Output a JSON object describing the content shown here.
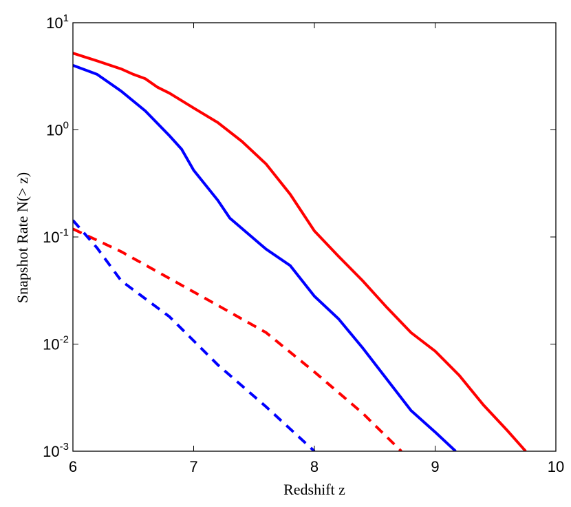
{
  "chart_data": {
    "type": "line",
    "xlabel": "Redshift z",
    "ylabel": "Snapshot Rate    N(> z)",
    "log_y": true,
    "xlim": [
      6,
      10
    ],
    "xticks": [
      6,
      7,
      8,
      9,
      10
    ],
    "ylim": [
      0.001,
      10
    ],
    "yticks": [
      {
        "value": 0.001,
        "label": "10^-3"
      },
      {
        "value": 0.01,
        "label": "10^-2"
      },
      {
        "value": 0.1,
        "label": "10^-1"
      },
      {
        "value": 1,
        "label": "10^0"
      },
      {
        "value": 10,
        "label": "10^1"
      }
    ],
    "series": [
      {
        "color": "#ff0000",
        "dash": false,
        "x": [
          6,
          6.2,
          6.4,
          6.5,
          6.6,
          6.7,
          6.8,
          7.0,
          7.2,
          7.4,
          7.6,
          7.8,
          8.0,
          8.2,
          8.4,
          8.6,
          8.8,
          9.0,
          9.2,
          9.4,
          9.6,
          9.75
        ],
        "values": [
          5.2,
          4.4,
          3.7,
          3.3,
          3.0,
          2.5,
          2.2,
          1.6,
          1.17,
          0.78,
          0.48,
          0.25,
          0.114,
          0.066,
          0.039,
          0.022,
          0.0128,
          0.0086,
          0.0051,
          0.0027,
          0.00155,
          0.001
        ]
      },
      {
        "color": "#0000ff",
        "dash": false,
        "x": [
          6,
          6.2,
          6.4,
          6.6,
          6.8,
          6.9,
          7.0,
          7.2,
          7.3,
          7.6,
          7.8,
          8.0,
          8.2,
          8.4,
          8.6,
          8.8,
          9.0,
          9.17
        ],
        "values": [
          4.0,
          3.3,
          2.3,
          1.5,
          0.88,
          0.66,
          0.42,
          0.22,
          0.15,
          0.077,
          0.054,
          0.028,
          0.0172,
          0.0092,
          0.0047,
          0.0024,
          0.00151,
          0.001
        ]
      },
      {
        "color": "#ff0000",
        "dash": true,
        "x": [
          6,
          6.4,
          6.8,
          7.2,
          7.6,
          8.0,
          8.4,
          8.72
        ],
        "values": [
          0.119,
          0.073,
          0.041,
          0.023,
          0.0128,
          0.0055,
          0.00226,
          0.001
        ]
      },
      {
        "color": "#0000ff",
        "dash": true,
        "x": [
          6,
          6.2,
          6.4,
          6.8,
          7.2,
          7.6,
          8.0
        ],
        "values": [
          0.143,
          0.079,
          0.039,
          0.018,
          0.0064,
          0.0026,
          0.001
        ]
      }
    ]
  }
}
